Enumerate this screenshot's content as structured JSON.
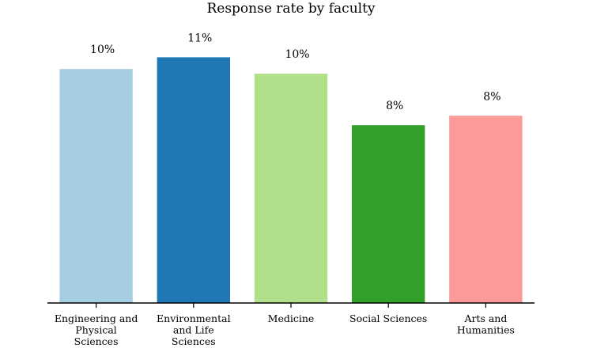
{
  "chart_data": {
    "type": "bar",
    "title": "Response rate by faculty",
    "xlabel": "",
    "ylabel": "",
    "categories": [
      [
        "Engineering and",
        "Physical",
        "Sciences"
      ],
      [
        "Environmental",
        "and Life",
        "Sciences"
      ],
      [
        "Medicine"
      ],
      [
        "Social Sciences"
      ],
      [
        "Arts and",
        "Humanities"
      ]
    ],
    "values": [
      10.0,
      10.5,
      9.8,
      7.6,
      8.0
    ],
    "value_labels": [
      "10%",
      "11%",
      "10%",
      "8%",
      "8%"
    ],
    "colors": [
      "#a6cee3",
      "#1f78b4",
      "#b2df8a",
      "#33a02c",
      "#fb9a99"
    ],
    "ylim": [
      0,
      12.0
    ],
    "grid": false,
    "legend": "none"
  }
}
